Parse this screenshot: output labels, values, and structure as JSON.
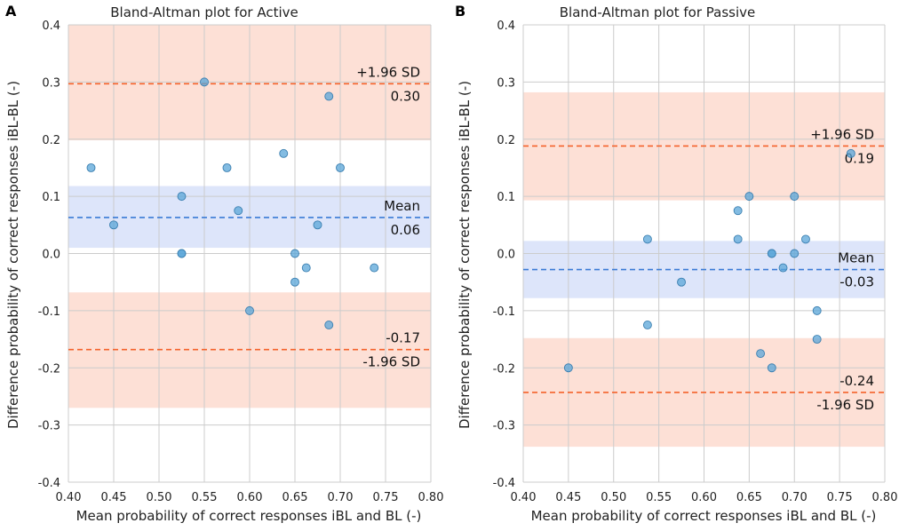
{
  "colors": {
    "loa_band": "#fde0d6",
    "mean_band": "#dde5fa",
    "loa_line": "#f4622b",
    "mean_line": "#3a7bd5",
    "point_fill": "#5aa6d8",
    "point_edge": "#3b7fb0",
    "grid": "#cccccc"
  },
  "chart_data": [
    {
      "type": "scatter",
      "panel_label": "A",
      "title": "Bland-Altman plot for Active",
      "xlabel": "Mean probability of correct responses iBL and BL (-)",
      "ylabel": "Difference probability of correct responses iBL-BL (-)",
      "xlim": [
        0.4,
        0.8
      ],
      "ylim": [
        -0.4,
        0.4
      ],
      "xticks": [
        "0.40",
        "0.45",
        "0.50",
        "0.55",
        "0.60",
        "0.65",
        "0.70",
        "0.75",
        "0.80"
      ],
      "yticks": [
        "0.4",
        "0.3",
        "0.2",
        "0.1",
        "0.0",
        "-0.1",
        "-0.2",
        "-0.3",
        "-0.4"
      ],
      "mean": 0.063,
      "mean_band": [
        0.01,
        0.118
      ],
      "upper_loa": 0.297,
      "upper_band": [
        0.198,
        0.4
      ],
      "lower_loa": -0.168,
      "lower_band": [
        -0.27,
        -0.068
      ],
      "labels": {
        "upper_name": "+1.96 SD",
        "upper_value": "0.30",
        "mean_name": "Mean",
        "mean_value": "0.06",
        "lower_value": "-0.17",
        "lower_name": "-1.96 SD"
      },
      "points": [
        {
          "x": 0.425,
          "y": 0.15
        },
        {
          "x": 0.45,
          "y": 0.05
        },
        {
          "x": 0.525,
          "y": 0.1
        },
        {
          "x": 0.525,
          "y": 0.0
        },
        {
          "x": 0.525,
          "y": 0.0
        },
        {
          "x": 0.55,
          "y": 0.3
        },
        {
          "x": 0.575,
          "y": 0.15
        },
        {
          "x": 0.5875,
          "y": 0.075
        },
        {
          "x": 0.6,
          "y": -0.1
        },
        {
          "x": 0.6375,
          "y": 0.175
        },
        {
          "x": 0.65,
          "y": 0.0
        },
        {
          "x": 0.65,
          "y": -0.05
        },
        {
          "x": 0.6625,
          "y": -0.025
        },
        {
          "x": 0.675,
          "y": 0.05
        },
        {
          "x": 0.6875,
          "y": 0.275
        },
        {
          "x": 0.6875,
          "y": -0.125
        },
        {
          "x": 0.7,
          "y": 0.15
        },
        {
          "x": 0.7375,
          "y": -0.025
        }
      ]
    },
    {
      "type": "scatter",
      "panel_label": "B",
      "title": "Bland-Altman plot for Passive",
      "xlabel": "Mean probability of correct responses iBL and BL (-)",
      "ylabel": "Difference probability of correct responses iBL-BL (-)",
      "xlim": [
        0.4,
        0.8
      ],
      "ylim": [
        -0.4,
        0.4
      ],
      "xticks": [
        "0.40",
        "0.45",
        "0.50",
        "0.55",
        "0.60",
        "0.65",
        "0.70",
        "0.75",
        "0.80"
      ],
      "yticks": [
        "0.4",
        "0.3",
        "0.2",
        "0.1",
        "0.0",
        "-0.1",
        "-0.2",
        "-0.3",
        "-0.4"
      ],
      "mean": -0.028,
      "mean_band": [
        -0.078,
        0.022
      ],
      "upper_loa": 0.188,
      "upper_band": [
        0.093,
        0.282
      ],
      "lower_loa": -0.243,
      "lower_band": [
        -0.338,
        -0.148
      ],
      "labels": {
        "upper_name": "+1.96 SD",
        "upper_value": "0.19",
        "mean_name": "Mean",
        "mean_value": "-0.03",
        "lower_value": "-0.24",
        "lower_name": "-1.96 SD"
      },
      "points": [
        {
          "x": 0.45,
          "y": -0.2
        },
        {
          "x": 0.5375,
          "y": 0.025
        },
        {
          "x": 0.5375,
          "y": -0.125
        },
        {
          "x": 0.575,
          "y": -0.05
        },
        {
          "x": 0.6375,
          "y": 0.075
        },
        {
          "x": 0.6375,
          "y": 0.025
        },
        {
          "x": 0.65,
          "y": 0.1
        },
        {
          "x": 0.6625,
          "y": -0.175
        },
        {
          "x": 0.675,
          "y": 0.0
        },
        {
          "x": 0.675,
          "y": 0.0
        },
        {
          "x": 0.675,
          "y": -0.2
        },
        {
          "x": 0.6875,
          "y": -0.025
        },
        {
          "x": 0.7,
          "y": 0.1
        },
        {
          "x": 0.7,
          "y": 0.0
        },
        {
          "x": 0.7125,
          "y": 0.025
        },
        {
          "x": 0.725,
          "y": -0.1
        },
        {
          "x": 0.725,
          "y": -0.15
        },
        {
          "x": 0.7625,
          "y": 0.175
        }
      ]
    }
  ]
}
